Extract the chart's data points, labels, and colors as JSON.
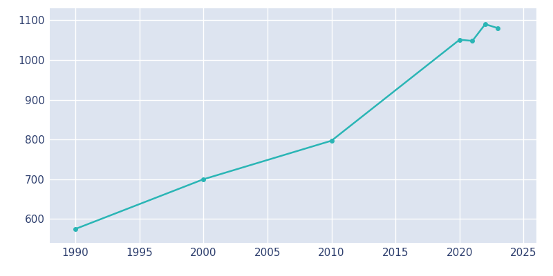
{
  "years": [
    1990,
    2000,
    2010,
    2020,
    2021,
    2022,
    2023
  ],
  "population": [
    575,
    700,
    797,
    1051,
    1048,
    1090,
    1080
  ],
  "line_color": "#2ab5b5",
  "bg_color": "#ffffff",
  "axes_bg_color": "#dde4f0",
  "xlim": [
    1988,
    2026
  ],
  "ylim": [
    540,
    1130
  ],
  "yticks": [
    600,
    700,
    800,
    900,
    1000,
    1100
  ],
  "xticks": [
    1990,
    1995,
    2000,
    2005,
    2010,
    2015,
    2020,
    2025
  ],
  "tick_color": "#2e3f6e",
  "grid_color": "#ffffff",
  "linewidth": 1.8,
  "markersize": 4
}
